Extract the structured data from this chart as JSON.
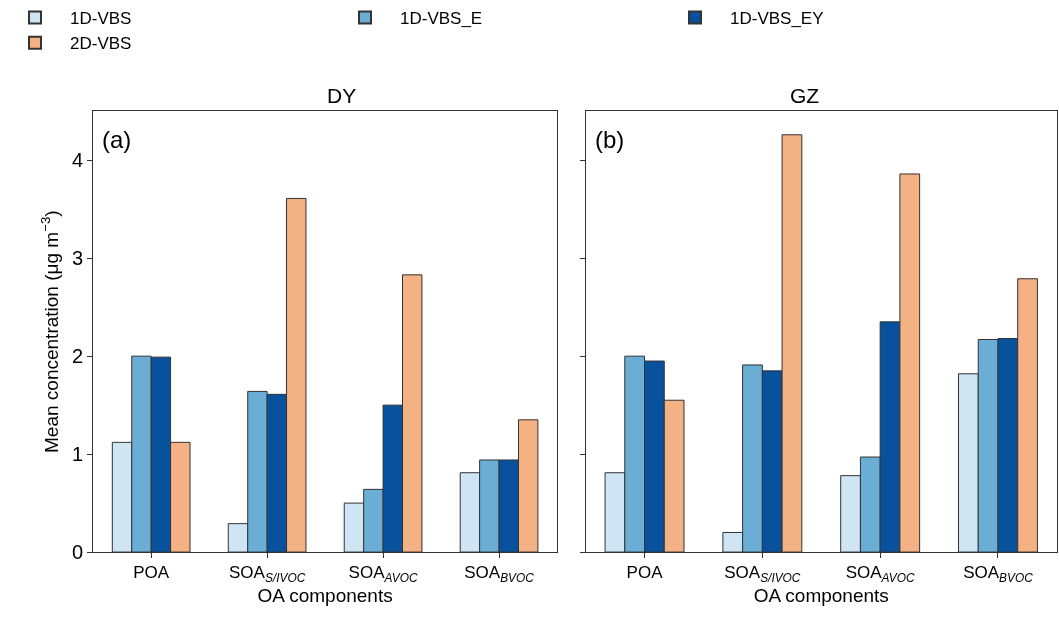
{
  "chart_data": [
    {
      "type": "bar",
      "title": "DY",
      "xlabel": "OA components",
      "ylabel": "Mean concentration (μg m$^{−3}$)",
      "annotations": [
        "(a)"
      ],
      "categories": [
        "POA",
        "SOA$_{S/IVOC}$",
        "SOA$_{AVOC}$",
        "SOA$_{BVOC}$"
      ],
      "series": [
        {
          "name": "1D-VBS",
          "color": "#d0e5f3",
          "values": [
            1.12,
            0.29,
            0.5,
            0.81
          ]
        },
        {
          "name": "1D-VBS_E",
          "color": "#6aaed6",
          "values": [
            2.0,
            1.64,
            0.64,
            0.94
          ]
        },
        {
          "name": "1D-VBS_EY",
          "color": "#08519c",
          "values": [
            1.99,
            1.61,
            1.5,
            0.94
          ]
        },
        {
          "name": "2D-VBS",
          "color": "#f4b183",
          "values": [
            1.12,
            3.61,
            2.83,
            1.35
          ]
        }
      ],
      "ylim": [
        0,
        4.5
      ],
      "yticks": [
        0,
        1,
        2,
        3,
        4
      ],
      "legend": "top"
    },
    {
      "type": "bar",
      "title": "GZ",
      "xlabel": "OA components",
      "annotations": [
        "(b)"
      ],
      "categories": [
        "POA",
        "SOA$_{S/IVOC}$",
        "SOA$_{AVOC}$",
        "SOA$_{BVOC}$"
      ],
      "series": [
        {
          "color": "#d0e5f3",
          "values": [
            0.81,
            0.2,
            0.78,
            1.82
          ]
        },
        {
          "color": "#6aaed6",
          "values": [
            2.0,
            1.91,
            0.97,
            2.17
          ]
        },
        {
          "color": "#08519c",
          "values": [
            1.95,
            1.85,
            2.35,
            2.18
          ]
        },
        {
          "color": "#f4b183",
          "values": [
            1.55,
            4.26,
            3.86,
            2.79
          ]
        }
      ],
      "ylim": [
        0,
        4.5
      ],
      "yticks": [
        0,
        1,
        2,
        3,
        4
      ],
      "tick_labels": "x"
    }
  ]
}
